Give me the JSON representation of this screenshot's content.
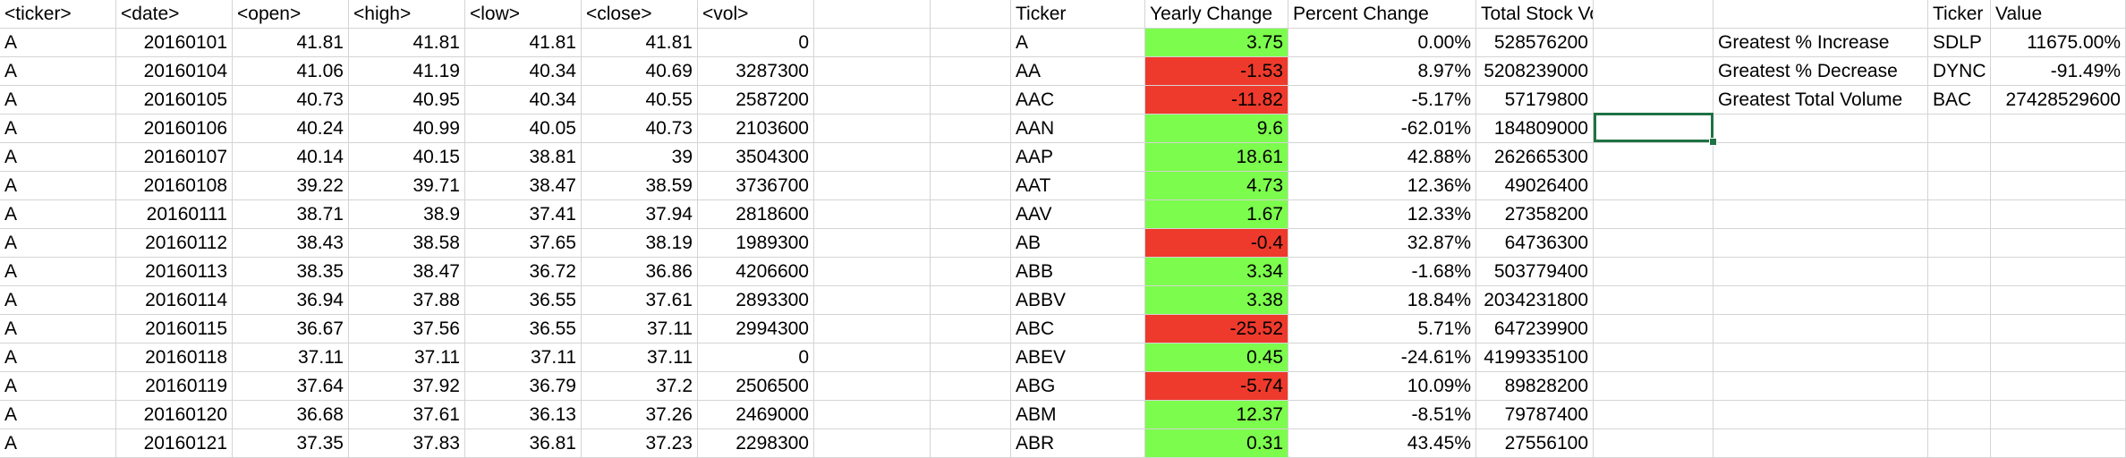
{
  "raw_table": {
    "headers": [
      "<ticker>",
      "<date>",
      "<open>",
      "<high>",
      "<low>",
      "<close>",
      "<vol>"
    ],
    "rows": [
      [
        "A",
        "20160101",
        "41.81",
        "41.81",
        "41.81",
        "41.81",
        "0"
      ],
      [
        "A",
        "20160104",
        "41.06",
        "41.19",
        "40.34",
        "40.69",
        "3287300"
      ],
      [
        "A",
        "20160105",
        "40.73",
        "40.95",
        "40.34",
        "40.55",
        "2587200"
      ],
      [
        "A",
        "20160106",
        "40.24",
        "40.99",
        "40.05",
        "40.73",
        "2103600"
      ],
      [
        "A",
        "20160107",
        "40.14",
        "40.15",
        "38.81",
        "39",
        "3504300"
      ],
      [
        "A",
        "20160108",
        "39.22",
        "39.71",
        "38.47",
        "38.59",
        "3736700"
      ],
      [
        "A",
        "20160111",
        "38.71",
        "38.9",
        "37.41",
        "37.94",
        "2818600"
      ],
      [
        "A",
        "20160112",
        "38.43",
        "38.58",
        "37.65",
        "38.19",
        "1989300"
      ],
      [
        "A",
        "20160113",
        "38.35",
        "38.47",
        "36.72",
        "36.86",
        "4206600"
      ],
      [
        "A",
        "20160114",
        "36.94",
        "37.88",
        "36.55",
        "37.61",
        "2893300"
      ],
      [
        "A",
        "20160115",
        "36.67",
        "37.56",
        "36.55",
        "37.11",
        "2994300"
      ],
      [
        "A",
        "20160118",
        "37.11",
        "37.11",
        "37.11",
        "37.11",
        "0"
      ],
      [
        "A",
        "20160119",
        "37.64",
        "37.92",
        "36.79",
        "37.2",
        "2506500"
      ],
      [
        "A",
        "20160120",
        "36.68",
        "37.61",
        "36.13",
        "37.26",
        "2469000"
      ],
      [
        "A",
        "20160121",
        "37.35",
        "37.83",
        "36.81",
        "37.23",
        "2298300"
      ]
    ]
  },
  "summary_table": {
    "headers": [
      "Ticker",
      "Yearly Change",
      "Percent Change",
      "Total Stock Volume"
    ],
    "rows": [
      {
        "ticker": "A",
        "yearly_change": "3.75",
        "percent_change": "0.00%",
        "total_volume": "528576200",
        "direction": "positive"
      },
      {
        "ticker": "AA",
        "yearly_change": "-1.53",
        "percent_change": "8.97%",
        "total_volume": "5208239000",
        "direction": "negative"
      },
      {
        "ticker": "AAC",
        "yearly_change": "-11.82",
        "percent_change": "-5.17%",
        "total_volume": "57179800",
        "direction": "negative"
      },
      {
        "ticker": "AAN",
        "yearly_change": "9.6",
        "percent_change": "-62.01%",
        "total_volume": "184809000",
        "direction": "positive"
      },
      {
        "ticker": "AAP",
        "yearly_change": "18.61",
        "percent_change": "42.88%",
        "total_volume": "262665300",
        "direction": "positive"
      },
      {
        "ticker": "AAT",
        "yearly_change": "4.73",
        "percent_change": "12.36%",
        "total_volume": "49026400",
        "direction": "positive"
      },
      {
        "ticker": "AAV",
        "yearly_change": "1.67",
        "percent_change": "12.33%",
        "total_volume": "27358200",
        "direction": "positive"
      },
      {
        "ticker": "AB",
        "yearly_change": "-0.4",
        "percent_change": "32.87%",
        "total_volume": "64736300",
        "direction": "negative"
      },
      {
        "ticker": "ABB",
        "yearly_change": "3.34",
        "percent_change": "-1.68%",
        "total_volume": "503779400",
        "direction": "positive"
      },
      {
        "ticker": "ABBV",
        "yearly_change": "3.38",
        "percent_change": "18.84%",
        "total_volume": "2034231800",
        "direction": "positive"
      },
      {
        "ticker": "ABC",
        "yearly_change": "-25.52",
        "percent_change": "5.71%",
        "total_volume": "647239900",
        "direction": "negative"
      },
      {
        "ticker": "ABEV",
        "yearly_change": "0.45",
        "percent_change": "-24.61%",
        "total_volume": "4199335100",
        "direction": "positive"
      },
      {
        "ticker": "ABG",
        "yearly_change": "-5.74",
        "percent_change": "10.09%",
        "total_volume": "89828200",
        "direction": "negative"
      },
      {
        "ticker": "ABM",
        "yearly_change": "12.37",
        "percent_change": "-8.51%",
        "total_volume": "79787400",
        "direction": "positive"
      },
      {
        "ticker": "ABR",
        "yearly_change": "0.31",
        "percent_change": "43.45%",
        "total_volume": "27556100",
        "direction": "positive"
      }
    ]
  },
  "greatest_table": {
    "headers": [
      "Ticker",
      "Value"
    ],
    "rows": [
      {
        "label": "Greatest % Increase",
        "ticker": "SDLP",
        "value": "11675.00%"
      },
      {
        "label": "Greatest % Decrease",
        "ticker": "DYNC",
        "value": "-91.49%"
      },
      {
        "label": "Greatest Total Volume",
        "ticker": "BAC",
        "value": "27428529600"
      }
    ]
  },
  "colors": {
    "positive_fill": "#7cfc4c",
    "negative_fill": "#ee3a2c",
    "selection_border": "#1f7244",
    "gridline": "#d4d4d4"
  },
  "selected_cell": "empty cell below Greatest Total Volume label column"
}
